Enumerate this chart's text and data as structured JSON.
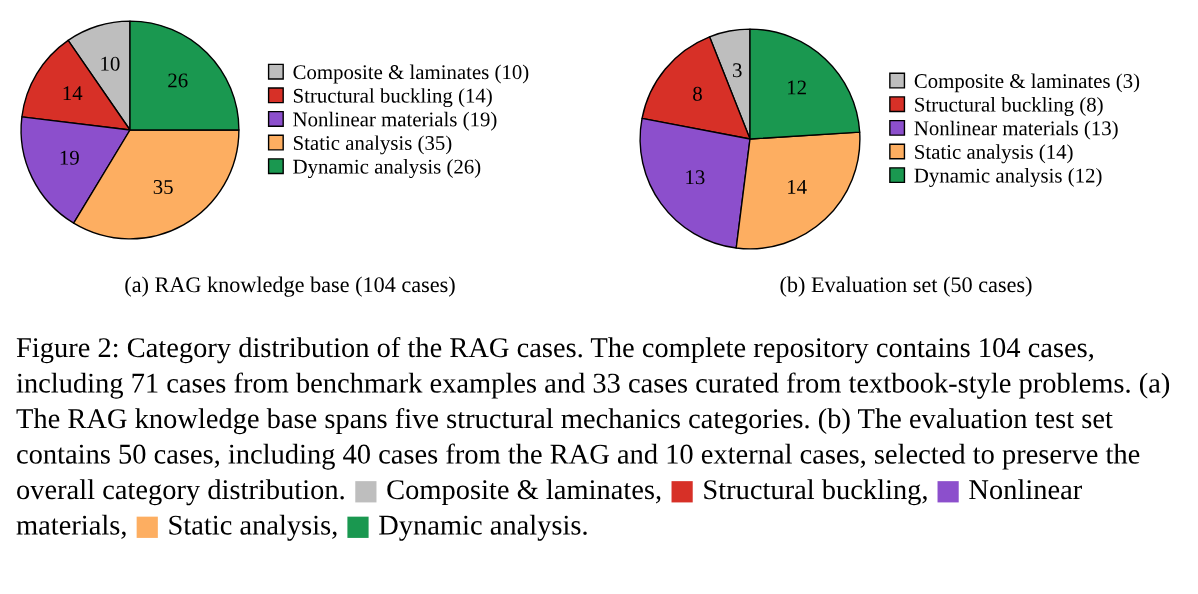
{
  "chart_data": [
    {
      "type": "pie",
      "title": "(a) RAG knowledge base (104 cases)",
      "categories": [
        "Composite & laminates (10)",
        "Structural buckling (14)",
        "Nonlinear materials (19)",
        "Static analysis (35)",
        "Dynamic analysis (26)"
      ],
      "values": [
        10,
        14,
        19,
        35,
        26
      ],
      "colors": [
        "#bebebe",
        "#d73027",
        "#8c4fcc",
        "#fdae61",
        "#1a9850"
      ],
      "data_labels": true,
      "legend": "right"
    },
    {
      "type": "pie",
      "title": "(b) Evaluation set (50 cases)",
      "categories": [
        "Composite & laminates (3)",
        "Structural buckling (8)",
        "Nonlinear materials (13)",
        "Static analysis (14)",
        "Dynamic analysis (12)"
      ],
      "values": [
        3,
        8,
        13,
        14,
        12
      ],
      "colors": [
        "#bebebe",
        "#d73027",
        "#8c4fcc",
        "#fdae61",
        "#1a9850"
      ],
      "data_labels": true,
      "legend": "right",
      "annotations": [
        "Figure 2: Category distribution of the RAG cases. The complete repository contains 104 cases, including 71 cases from benchmark examples and 33 cases curated from textbook-style problems. (a) The RAG knowledge base spans five structural mechanics categories. (b) The evaluation test set contains 50 cases, including 40 cases from the RAG and 10 external cases, selected to preserve the overall category distribution. ■ Composite & laminates, ■ Structural buckling, ■ Nonlinear materials, ■ Static analysis, ■ Dynamic analysis."
      ]
    }
  ]
}
